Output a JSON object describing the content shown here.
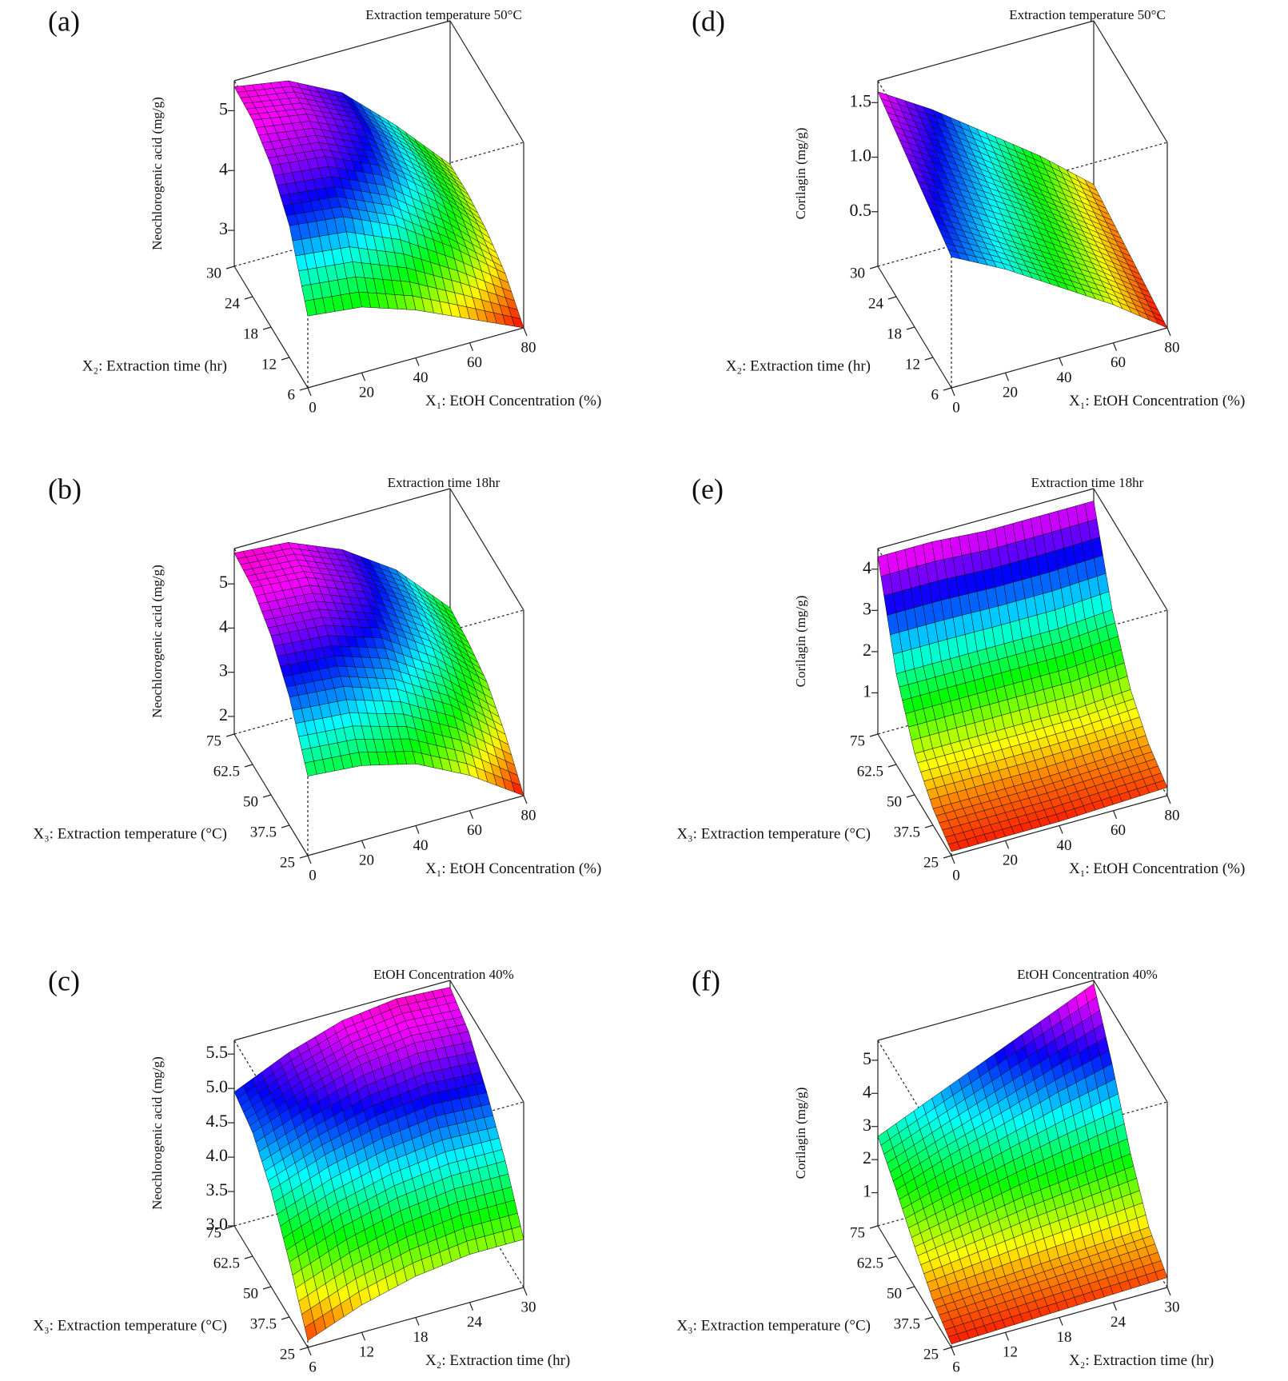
{
  "chart_data": [
    {
      "type": "surface3d",
      "panel_label": "(a)",
      "title": "Extraction temperature 50°C",
      "zlabel": "Neochlorogenic acid (mg/g)",
      "xlabel": "X₁: EtOH Concentration (%)",
      "ylabel": "X₂: Extraction time (hr)",
      "xlim": [
        0,
        80
      ],
      "ylim": [
        6,
        30
      ],
      "zlim": [
        2.4,
        5.5
      ],
      "xticks": [
        0,
        20,
        40,
        60,
        80
      ],
      "yticks": [
        6,
        12,
        18,
        24,
        30
      ],
      "zticks": [
        3,
        4,
        5
      ],
      "colormap": "rainbow",
      "z": [
        [
          3.6,
          3.5,
          3.2,
          2.8,
          2.4
        ],
        [
          4.6,
          4.5,
          4.1,
          3.5,
          2.8
        ],
        [
          5.1,
          5.0,
          4.6,
          3.9,
          3.0
        ],
        [
          5.35,
          5.2,
          4.8,
          4.0,
          3.1
        ],
        [
          5.4,
          5.25,
          4.8,
          4.0,
          3.1
        ]
      ]
    },
    {
      "type": "surface3d",
      "panel_label": "(d)",
      "title": "Extraction temperature 50°C",
      "zlabel": "Corilagin (mg/g)",
      "xlabel": "X₁: EtOH Concentration (%)",
      "ylabel": "X₂: Extraction time (hr)",
      "xlim": [
        0,
        80
      ],
      "ylim": [
        6,
        30
      ],
      "zlim": [
        0,
        1.7
      ],
      "xticks": [
        0,
        20,
        40,
        60,
        80
      ],
      "yticks": [
        6,
        12,
        18,
        24,
        30
      ],
      "zticks": [
        0.5,
        {
          "value": 1,
          "label": "1.0"
        },
        1.5
      ],
      "colormap": "rainbow",
      "z": [
        [
          1.2,
          0.95,
          0.65,
          0.35,
          0.0
        ],
        [
          1.3,
          1.0,
          0.7,
          0.4,
          0.05
        ],
        [
          1.4,
          1.1,
          0.8,
          0.45,
          0.1
        ],
        [
          1.5,
          1.2,
          0.85,
          0.5,
          0.15
        ],
        [
          1.6,
          1.3,
          0.95,
          0.6,
          0.2
        ]
      ]
    },
    {
      "type": "surface3d",
      "panel_label": "(b)",
      "title": "Extraction time 18hr",
      "zlabel": "Neochlorogenic acid (mg/g)",
      "xlabel": "X₁: EtOH Concentration (%)",
      "ylabel": "X₃: Extraction temperature (°C)",
      "xlim": [
        0,
        80
      ],
      "ylim": [
        25,
        75
      ],
      "zlim": [
        1.6,
        5.8
      ],
      "xticks": [
        0,
        20,
        40,
        60,
        80
      ],
      "yticks": [
        25,
        37.5,
        50,
        62.5,
        75
      ],
      "zticks": [
        2,
        3,
        4,
        5
      ],
      "colormap": "rainbow",
      "z": [
        [
          3.4,
          3.3,
          3.0,
          2.4,
          1.6
        ],
        [
          4.5,
          4.4,
          4.0,
          3.3,
          2.3
        ],
        [
          5.2,
          5.1,
          4.7,
          3.9,
          2.8
        ],
        [
          5.6,
          5.5,
          5.0,
          4.2,
          3.0
        ],
        [
          5.7,
          5.6,
          5.1,
          4.3,
          3.1
        ]
      ]
    },
    {
      "type": "surface3d",
      "panel_label": "(e)",
      "title": "Extraction time 18hr",
      "zlabel": "Corilagin (mg/g)",
      "xlabel": "X₁: EtOH Concentration (%)",
      "ylabel": "X₃: Extraction temperature (°C)",
      "xlim": [
        0,
        80
      ],
      "ylim": [
        25,
        75
      ],
      "zlim": [
        0,
        4.5
      ],
      "xticks": [
        0,
        20,
        40,
        60,
        80
      ],
      "yticks": [
        25,
        37.5,
        50,
        62.5,
        75
      ],
      "zticks": [
        1,
        2,
        3,
        4
      ],
      "colormap": "rainbow",
      "z": [
        [
          0.1,
          0.1,
          0.1,
          0.15,
          0.2
        ],
        [
          0.4,
          0.4,
          0.4,
          0.45,
          0.5
        ],
        [
          1.0,
          1.0,
          1.0,
          1.0,
          1.1
        ],
        [
          2.2,
          2.2,
          2.2,
          2.2,
          2.3
        ],
        [
          4.3,
          4.3,
          4.2,
          4.2,
          4.2
        ]
      ]
    },
    {
      "type": "surface3d",
      "panel_label": "(c)",
      "title": "EtOH Concentration 40%",
      "zlabel": "Neochlorogenic acid (mg/g)",
      "xlabel": "X₂: Extraction time (hr)",
      "ylabel": "X₃: Extraction temperature (°C)",
      "xlim": [
        6,
        30
      ],
      "ylim": [
        25,
        75
      ],
      "zlim": [
        3.0,
        5.7
      ],
      "xticks": [
        6,
        12,
        18,
        24,
        30
      ],
      "yticks": [
        25,
        37.5,
        50,
        62.5,
        75
      ],
      "zticks": [
        {
          "value": 3,
          "label": "3.0"
        },
        3.5,
        {
          "value": 4,
          "label": "4.0"
        },
        4.5,
        {
          "value": 5,
          "label": "5.0"
        },
        5.5
      ],
      "colormap": "rainbow",
      "z": [
        [
          3.1,
          3.4,
          3.6,
          3.7,
          3.7
        ],
        [
          3.8,
          4.1,
          4.3,
          4.4,
          4.4
        ],
        [
          4.4,
          4.7,
          4.9,
          5.0,
          4.95
        ],
        [
          4.8,
          5.1,
          5.35,
          5.45,
          5.4
        ],
        [
          4.95,
          5.3,
          5.55,
          5.65,
          5.6
        ]
      ]
    },
    {
      "type": "surface3d",
      "panel_label": "(f)",
      "title": "EtOH Concentration 40%",
      "zlabel": "Corilagin (mg/g)",
      "xlabel": "X₂: Extraction time (hr)",
      "ylabel": "X₃: Extraction temperature (°C)",
      "xlim": [
        6,
        30
      ],
      "ylim": [
        25,
        75
      ],
      "zlim": [
        0,
        5.6
      ],
      "xticks": [
        6,
        12,
        18,
        24,
        30
      ],
      "yticks": [
        25,
        37.5,
        50,
        62.5,
        75
      ],
      "zticks": [
        1,
        2,
        3,
        4,
        5
      ],
      "colormap": "rainbow",
      "z": [
        [
          0.1,
          0.15,
          0.2,
          0.25,
          0.3
        ],
        [
          0.5,
          0.6,
          0.7,
          0.8,
          0.9
        ],
        [
          1.2,
          1.5,
          1.8,
          2.0,
          2.2
        ],
        [
          2.0,
          2.6,
          3.1,
          3.6,
          4.0
        ],
        [
          2.7,
          3.4,
          4.1,
          4.8,
          5.5
        ]
      ]
    }
  ]
}
